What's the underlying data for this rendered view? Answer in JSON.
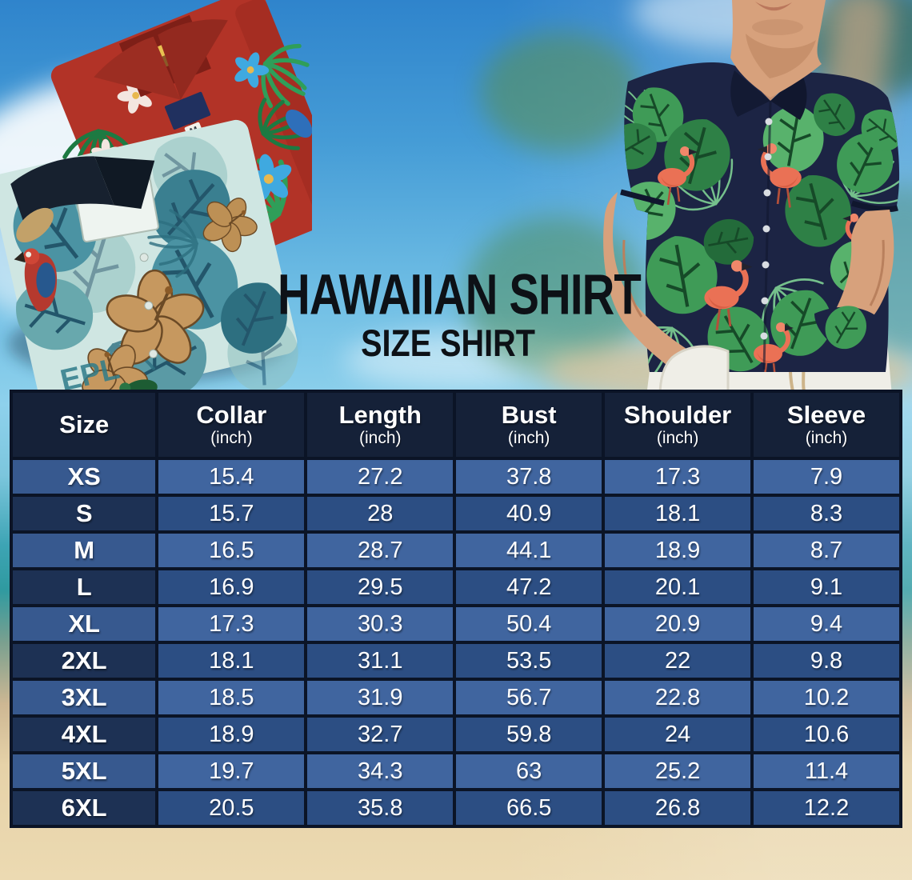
{
  "title": {
    "main": "HAWAIIAN SHIRT",
    "sub": "SIZE SHIRT"
  },
  "size_table": {
    "columns": [
      {
        "label": "Size",
        "unit": ""
      },
      {
        "label": "Collar",
        "unit": "(inch)"
      },
      {
        "label": "Length",
        "unit": "(inch)"
      },
      {
        "label": "Bust",
        "unit": "(inch)"
      },
      {
        "label": "Shoulder",
        "unit": "(inch)"
      },
      {
        "label": "Sleeve",
        "unit": "(inch)"
      }
    ],
    "rows": [
      {
        "size": "XS",
        "values": [
          "15.4",
          "27.2",
          "37.8",
          "17.3",
          "7.9"
        ]
      },
      {
        "size": "S",
        "values": [
          "15.7",
          "28",
          "40.9",
          "18.1",
          "8.3"
        ]
      },
      {
        "size": "M",
        "values": [
          "16.5",
          "28.7",
          "44.1",
          "18.9",
          "8.7"
        ]
      },
      {
        "size": "L",
        "values": [
          "16.9",
          "29.5",
          "47.2",
          "20.1",
          "9.1"
        ]
      },
      {
        "size": "XL",
        "values": [
          "17.3",
          "30.3",
          "50.4",
          "20.9",
          "9.4"
        ]
      },
      {
        "size": "2XL",
        "values": [
          "18.1",
          "31.1",
          "53.5",
          "22",
          "9.8"
        ]
      },
      {
        "size": "3XL",
        "values": [
          "18.5",
          "31.9",
          "56.7",
          "22.8",
          "10.2"
        ]
      },
      {
        "size": "4XL",
        "values": [
          "18.9",
          "32.7",
          "59.8",
          "24",
          "10.6"
        ]
      },
      {
        "size": "5XL",
        "values": [
          "19.7",
          "34.3",
          "63",
          "25.2",
          "11.4"
        ]
      },
      {
        "size": "6XL",
        "values": [
          "20.5",
          "35.8",
          "66.5",
          "26.8",
          "12.2"
        ]
      }
    ]
  },
  "chart_data": {
    "type": "table",
    "title": "HAWAIIAN SHIRT — SIZE SHIRT",
    "columns": [
      "Size",
      "Collar (inch)",
      "Length (inch)",
      "Bust (inch)",
      "Shoulder (inch)",
      "Sleeve (inch)"
    ],
    "rows": [
      [
        "XS",
        15.4,
        27.2,
        37.8,
        17.3,
        7.9
      ],
      [
        "S",
        15.7,
        28,
        40.9,
        18.1,
        8.3
      ],
      [
        "M",
        16.5,
        28.7,
        44.1,
        18.9,
        8.7
      ],
      [
        "L",
        16.9,
        29.5,
        47.2,
        20.1,
        9.1
      ],
      [
        "XL",
        17.3,
        30.3,
        50.4,
        20.9,
        9.4
      ],
      [
        "2XL",
        18.1,
        31.1,
        53.5,
        22,
        9.8
      ],
      [
        "3XL",
        18.5,
        31.9,
        56.7,
        22.8,
        10.2
      ],
      [
        "4XL",
        18.9,
        32.7,
        59.8,
        24,
        10.6
      ],
      [
        "5XL",
        19.7,
        34.3,
        63,
        25.2,
        11.4
      ],
      [
        "6XL",
        20.5,
        35.8,
        66.5,
        26.8,
        12.2
      ]
    ]
  },
  "illustrations": {
    "left_photo": {
      "name": "folded-hawaiian-shirts",
      "label_tag": "M",
      "pocket_text": "EPL"
    },
    "right_photo": {
      "name": "man-wearing-flamingo-hawaiian-shirt"
    }
  },
  "palette": {
    "table_border": "#0b1426",
    "header_bg": "#152138",
    "row_odd_bg": "#40659f",
    "row_odd_size_bg": "#37598f",
    "row_even_bg": "#2c4e83",
    "row_even_size_bg": "#1d3154",
    "table_text": "#ffffff",
    "title_text": "#0d1116",
    "sky_blue": "#2e7fc8",
    "sand": "#e6d2a8"
  }
}
